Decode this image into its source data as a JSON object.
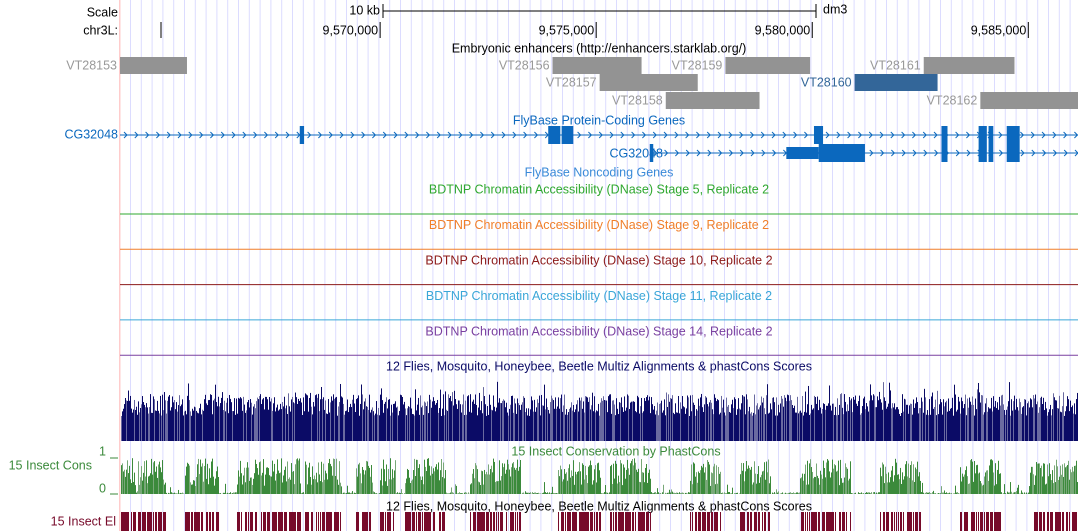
{
  "header": {
    "scale_label": "Scale",
    "scale_bar_label": "10 kb",
    "assembly": "dm3",
    "chrom_label": "chr3L:"
  },
  "ruler": {
    "ticks": [
      "9,570,000",
      "9,575,000",
      "9,580,000",
      "9,585,000"
    ]
  },
  "colors": {
    "grid": "#dcdcff",
    "left_border": "#ffcccc",
    "enhancer": "#939393",
    "enhancer_selected": "#336699",
    "gene": "#0b68be",
    "stage5": "#2fa82f",
    "stage9": "#f07f2a",
    "stage10": "#8c1a1a",
    "stage11": "#3aa6d8",
    "stage14": "#7a40a0",
    "multiz": "#0b0b66",
    "phastcons": "#3b8a3b",
    "elements": "#770a2a"
  },
  "tracks": {
    "enhancers": {
      "title": "Embryonic enhancers (http://enhancers.starklab.org/)",
      "items": [
        {
          "name": "VT28153",
          "start": 9563980,
          "end": 9565530,
          "row": 0,
          "selected": false
        },
        {
          "name": "VT28156",
          "start": 9573990,
          "end": 9576050,
          "row": 0,
          "selected": false
        },
        {
          "name": "VT28157",
          "start": 9575080,
          "end": 9577350,
          "row": 1,
          "selected": false
        },
        {
          "name": "VT28158",
          "start": 9576610,
          "end": 9578780,
          "row": 2,
          "selected": false
        },
        {
          "name": "VT28159",
          "start": 9577990,
          "end": 9579950,
          "row": 0,
          "selected": false
        },
        {
          "name": "VT28160",
          "start": 9580980,
          "end": 9582900,
          "row": 1,
          "selected": true
        },
        {
          "name": "VT28161",
          "start": 9582580,
          "end": 9584680,
          "row": 0,
          "selected": false
        },
        {
          "name": "VT28162",
          "start": 9583890,
          "end": 9586250,
          "row": 2,
          "selected": false
        }
      ]
    },
    "genes": {
      "title": "FlyBase Protein-Coding Genes",
      "transcripts": [
        {
          "name": "CG32048",
          "exons": [
            [
              9568140,
              9568240
            ],
            [
              9573890,
              9574170
            ],
            [
              9574200,
              9574470
            ],
            [
              9580040,
              9580250
            ],
            [
              9582990,
              9583130
            ],
            [
              9583850,
              9584040
            ],
            [
              9584080,
              9584190
            ],
            [
              9584500,
              9584800
            ]
          ]
        },
        {
          "name": "CG32048",
          "exons": [
            [
              9576240,
              9576320
            ],
            [
              9579400,
              9580150,
              "utr"
            ],
            [
              9580150,
              9581220
            ],
            [
              9582990,
              9583130
            ],
            [
              9583850,
              9584040
            ],
            [
              9584080,
              9584190
            ],
            [
              9584500,
              9584800
            ]
          ]
        }
      ]
    },
    "noncoding": {
      "title": "FlyBase Noncoding Genes"
    },
    "dnase": [
      {
        "title": "BDTNP Chromatin Accessibility (DNase) Stage 5, Replicate 2",
        "color_key": "stage5"
      },
      {
        "title": "BDTNP Chromatin Accessibility (DNase) Stage 9, Replicate 2",
        "color_key": "stage9"
      },
      {
        "title": "BDTNP Chromatin Accessibility (DNase) Stage 10, Replicate 2",
        "color_key": "stage10"
      },
      {
        "title": "BDTNP Chromatin Accessibility (DNase) Stage 11, Replicate 2",
        "color_key": "stage11"
      },
      {
        "title": "BDTNP Chromatin Accessibility (DNase) Stage 14, Replicate 2",
        "color_key": "stage14"
      }
    ],
    "multiz": {
      "title": "12 Flies, Mosquito, Honeybee, Beetle Multiz Alignments & phastCons Scores"
    },
    "phastcons": {
      "title": "15 Insect Conservation by PhastCons",
      "side_label": "15 Insect Cons",
      "ymax_label": "1",
      "ymin_label": "0"
    },
    "elements": {
      "title": "12 Flies, Mosquito, Honeybee, Beetle Multiz Alignments & phastCons Scores",
      "side_label": "15 Insect El"
    }
  },
  "view": {
    "start": 9563980,
    "end": 9586150,
    "ruler_positions": [
      9570000,
      9575000,
      9580000,
      9585000
    ],
    "scale_bar_kb": 10
  }
}
